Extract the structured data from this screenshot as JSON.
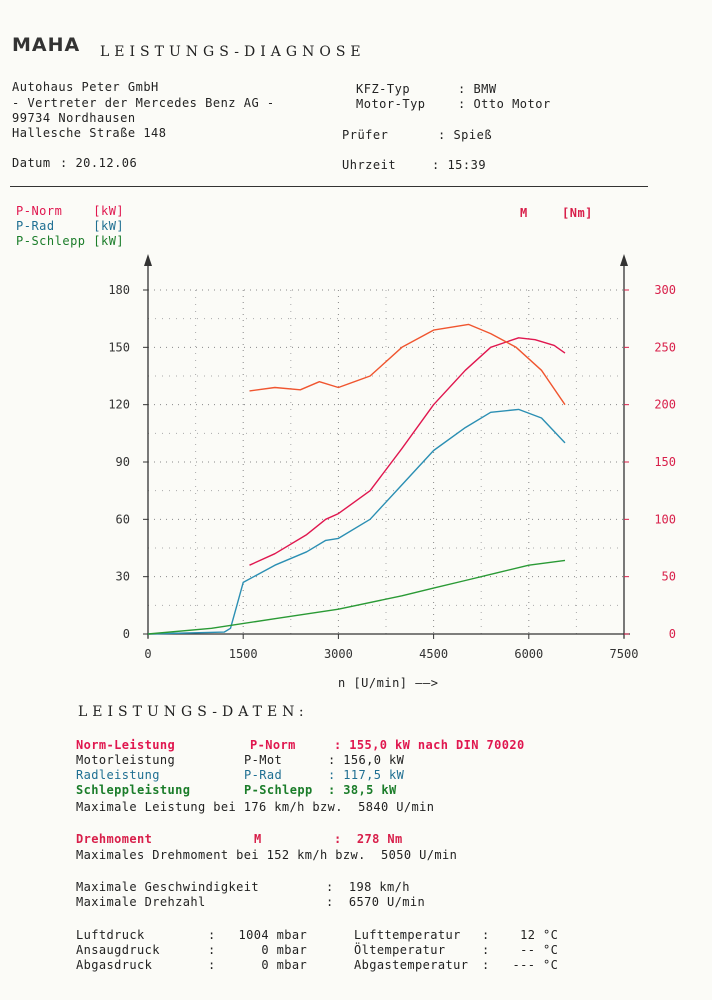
{
  "header": {
    "logo": "MAHA",
    "title": "LEISTUNGS-DIAGNOSE",
    "company_lines": [
      "Autohaus Peter GmbH",
      "- Vertreter der Mercedes Benz AG -",
      "99734 Nordhausen",
      "Hallesche Straße 148"
    ],
    "date_label": "Datum",
    "date": "20.12.06",
    "kfz_label": "KFZ-Typ",
    "kfz": "BMW",
    "motor_label": "Motor-Typ",
    "motor": "Otto Motor",
    "pruefer_label": "Prüfer",
    "pruefer": "Spieß",
    "uhrzeit_label": "Uhrzeit",
    "uhrzeit": "15:39"
  },
  "legend": {
    "p_norm": "P-Norm    [kW]",
    "p_rad": "P-Rad     [kW]",
    "p_schlepp": "P-Schlepp [kW]",
    "m_label": "M",
    "m_unit": "[Nm]"
  },
  "chart_data": {
    "type": "line",
    "xlabel": "n [U/min]",
    "xlim": [
      0,
      7500
    ],
    "x_ticks": [
      "0",
      "1500",
      "3000",
      "4500",
      "6000",
      "7500"
    ],
    "ylim_left": [
      0,
      180
    ],
    "y_ticks_left": [
      "0",
      "30",
      "60",
      "90",
      "120",
      "150",
      "180"
    ],
    "ylim_right": [
      0,
      300
    ],
    "y_ticks_right": [
      "0",
      "50",
      "100",
      "150",
      "200",
      "250",
      "300"
    ],
    "grid": "dotted",
    "series": [
      {
        "name": "P-Norm",
        "unit": "kW",
        "axis": "left",
        "color": "#e0174f",
        "x": [
          1600,
          2000,
          2500,
          2800,
          3000,
          3500,
          4000,
          4500,
          5000,
          5400,
          5840,
          6100,
          6400,
          6570
        ],
        "y": [
          36,
          42,
          52,
          60,
          63,
          75,
          97,
          120,
          138,
          150,
          155,
          154,
          151,
          147
        ]
      },
      {
        "name": "P-Rad",
        "unit": "kW",
        "axis": "left",
        "color": "#2b8fb3",
        "x": [
          0,
          1200,
          1300,
          1400,
          1500,
          2000,
          2500,
          2800,
          3000,
          3500,
          4000,
          4500,
          5000,
          5400,
          5840,
          6200,
          6570
        ],
        "y": [
          0,
          1,
          3,
          15,
          27,
          36,
          43,
          49,
          50,
          60,
          78,
          96,
          108,
          116,
          117.5,
          113,
          100
        ]
      },
      {
        "name": "P-Schlepp",
        "unit": "kW",
        "axis": "left",
        "color": "#2a9a35",
        "x": [
          0,
          1000,
          2000,
          3000,
          4000,
          4500,
          5000,
          5500,
          6000,
          6570
        ],
        "y": [
          0,
          3,
          8,
          13,
          20,
          24,
          28,
          32,
          36,
          38.5
        ]
      },
      {
        "name": "M",
        "unit": "Nm",
        "axis": "right",
        "color": "#f0552f",
        "x": [
          1600,
          2000,
          2400,
          2700,
          3000,
          3500,
          4000,
          4500,
          5050,
          5400,
          5800,
          6200,
          6570
        ],
        "y": [
          212,
          215,
          213,
          220,
          215,
          225,
          250,
          265,
          270,
          262,
          250,
          230,
          200
        ]
      }
    ]
  },
  "data_section": {
    "title": "LEISTUNGS-DATEN:",
    "rows": {
      "norm_label": "Norm-Leistung",
      "norm_sym": "P-Norm",
      "norm_val": ": 155,0 kW nach DIN 70020",
      "motor_label": "Motorleistung",
      "motor_sym": "P-Mot",
      "motor_val": ": 156,0 kW",
      "rad_label": "Radleistung",
      "rad_sym": "P-Rad",
      "rad_val": ": 117,5 kW",
      "schlepp_label": "Schleppleistung",
      "schlepp_sym": "P-Schlepp",
      "schlepp_val": ": 38,5 kW",
      "max_leistung": "Maximale Leistung bei 176 km/h bzw.  5840 U/min",
      "dreh_label": "Drehmoment",
      "dreh_sym": "M",
      "dreh_val": ":  278 Nm",
      "max_dreh": "Maximales Drehmoment bei 152 km/h bzw.  5050 U/min",
      "vmax_label": "Maximale Geschwindigkeit",
      "vmax_val": ":  198 km/h",
      "nmax_label": "Maximale Drehzahl",
      "nmax_val": ":  6570 U/min",
      "luft_label": "Luftdruck",
      "luft_val": ":   1004 mbar",
      "ansaug_label": "Ansaugdruck",
      "ansaug_val": ":      0 mbar",
      "abgas_label": "Abgasdruck",
      "abgas_val": ":      0 mbar",
      "lufttemp_label": "Lufttemperatur",
      "lufttemp_val": ":    12 °C",
      "oeltemp_label": "Öltemperatur",
      "oeltemp_val": ":    -- °C",
      "abgastemp_label": "Abgastemperatur",
      "abgastemp_val": ":   --- °C"
    }
  }
}
